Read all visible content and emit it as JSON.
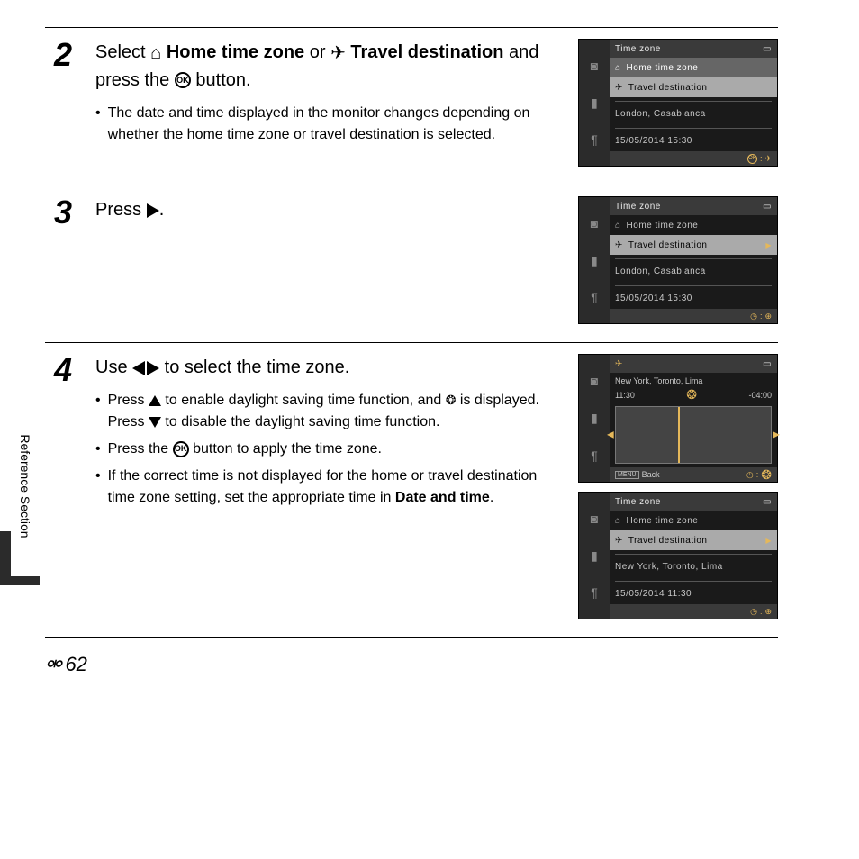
{
  "side": {
    "label": "Reference Section"
  },
  "page_number": "62",
  "steps": {
    "s2": {
      "num": "2",
      "heading_parts": {
        "pre": "Select ",
        "home": "Home time zone",
        "mid": " or ",
        "travel": "Travel destination",
        "post": " and press the ",
        "end": " button."
      },
      "bullet1": "The date and time displayed in the monitor changes depending on whether the home time zone or travel destination is selected."
    },
    "s3": {
      "num": "3",
      "heading": "Press "
    },
    "s4": {
      "num": "4",
      "heading_pre": "Use ",
      "heading_post": " to select the time zone.",
      "bullet1_a": "Press ",
      "bullet1_b": " to enable daylight saving time function, and ",
      "bullet1_c": " is displayed. Press ",
      "bullet1_d": " to disable the daylight saving time function.",
      "bullet2_a": "Press the ",
      "bullet2_b": " button to apply the time zone.",
      "bullet3_a": "If the correct time is not displayed for the home or travel destination time zone setting, set the appropriate time in ",
      "bullet3_bold": "Date and time",
      "bullet3_b": "."
    }
  },
  "screens": {
    "common": {
      "title": "Time zone",
      "home": "Home time zone",
      "travel": "Travel destination",
      "back": "Back"
    },
    "a": {
      "location": "London, Casablanca",
      "datetime": "15/05/2014   15:30"
    },
    "b": {
      "location": "London, Casablanca",
      "datetime": "15/05/2014   15:30"
    },
    "map": {
      "city": "New York, Toronto, Lima",
      "time": "11:30",
      "offset": "-04:00"
    },
    "c": {
      "location": "New York, Toronto, Lima",
      "datetime": "15/05/2014   11:30"
    }
  },
  "colors": {
    "accent": "#e5b85a",
    "screen_bg": "#1a1a1a",
    "sidebar_bg": "#2b2b2b",
    "row_selected": "#666666",
    "row_highlight": "#aaaaaa"
  }
}
